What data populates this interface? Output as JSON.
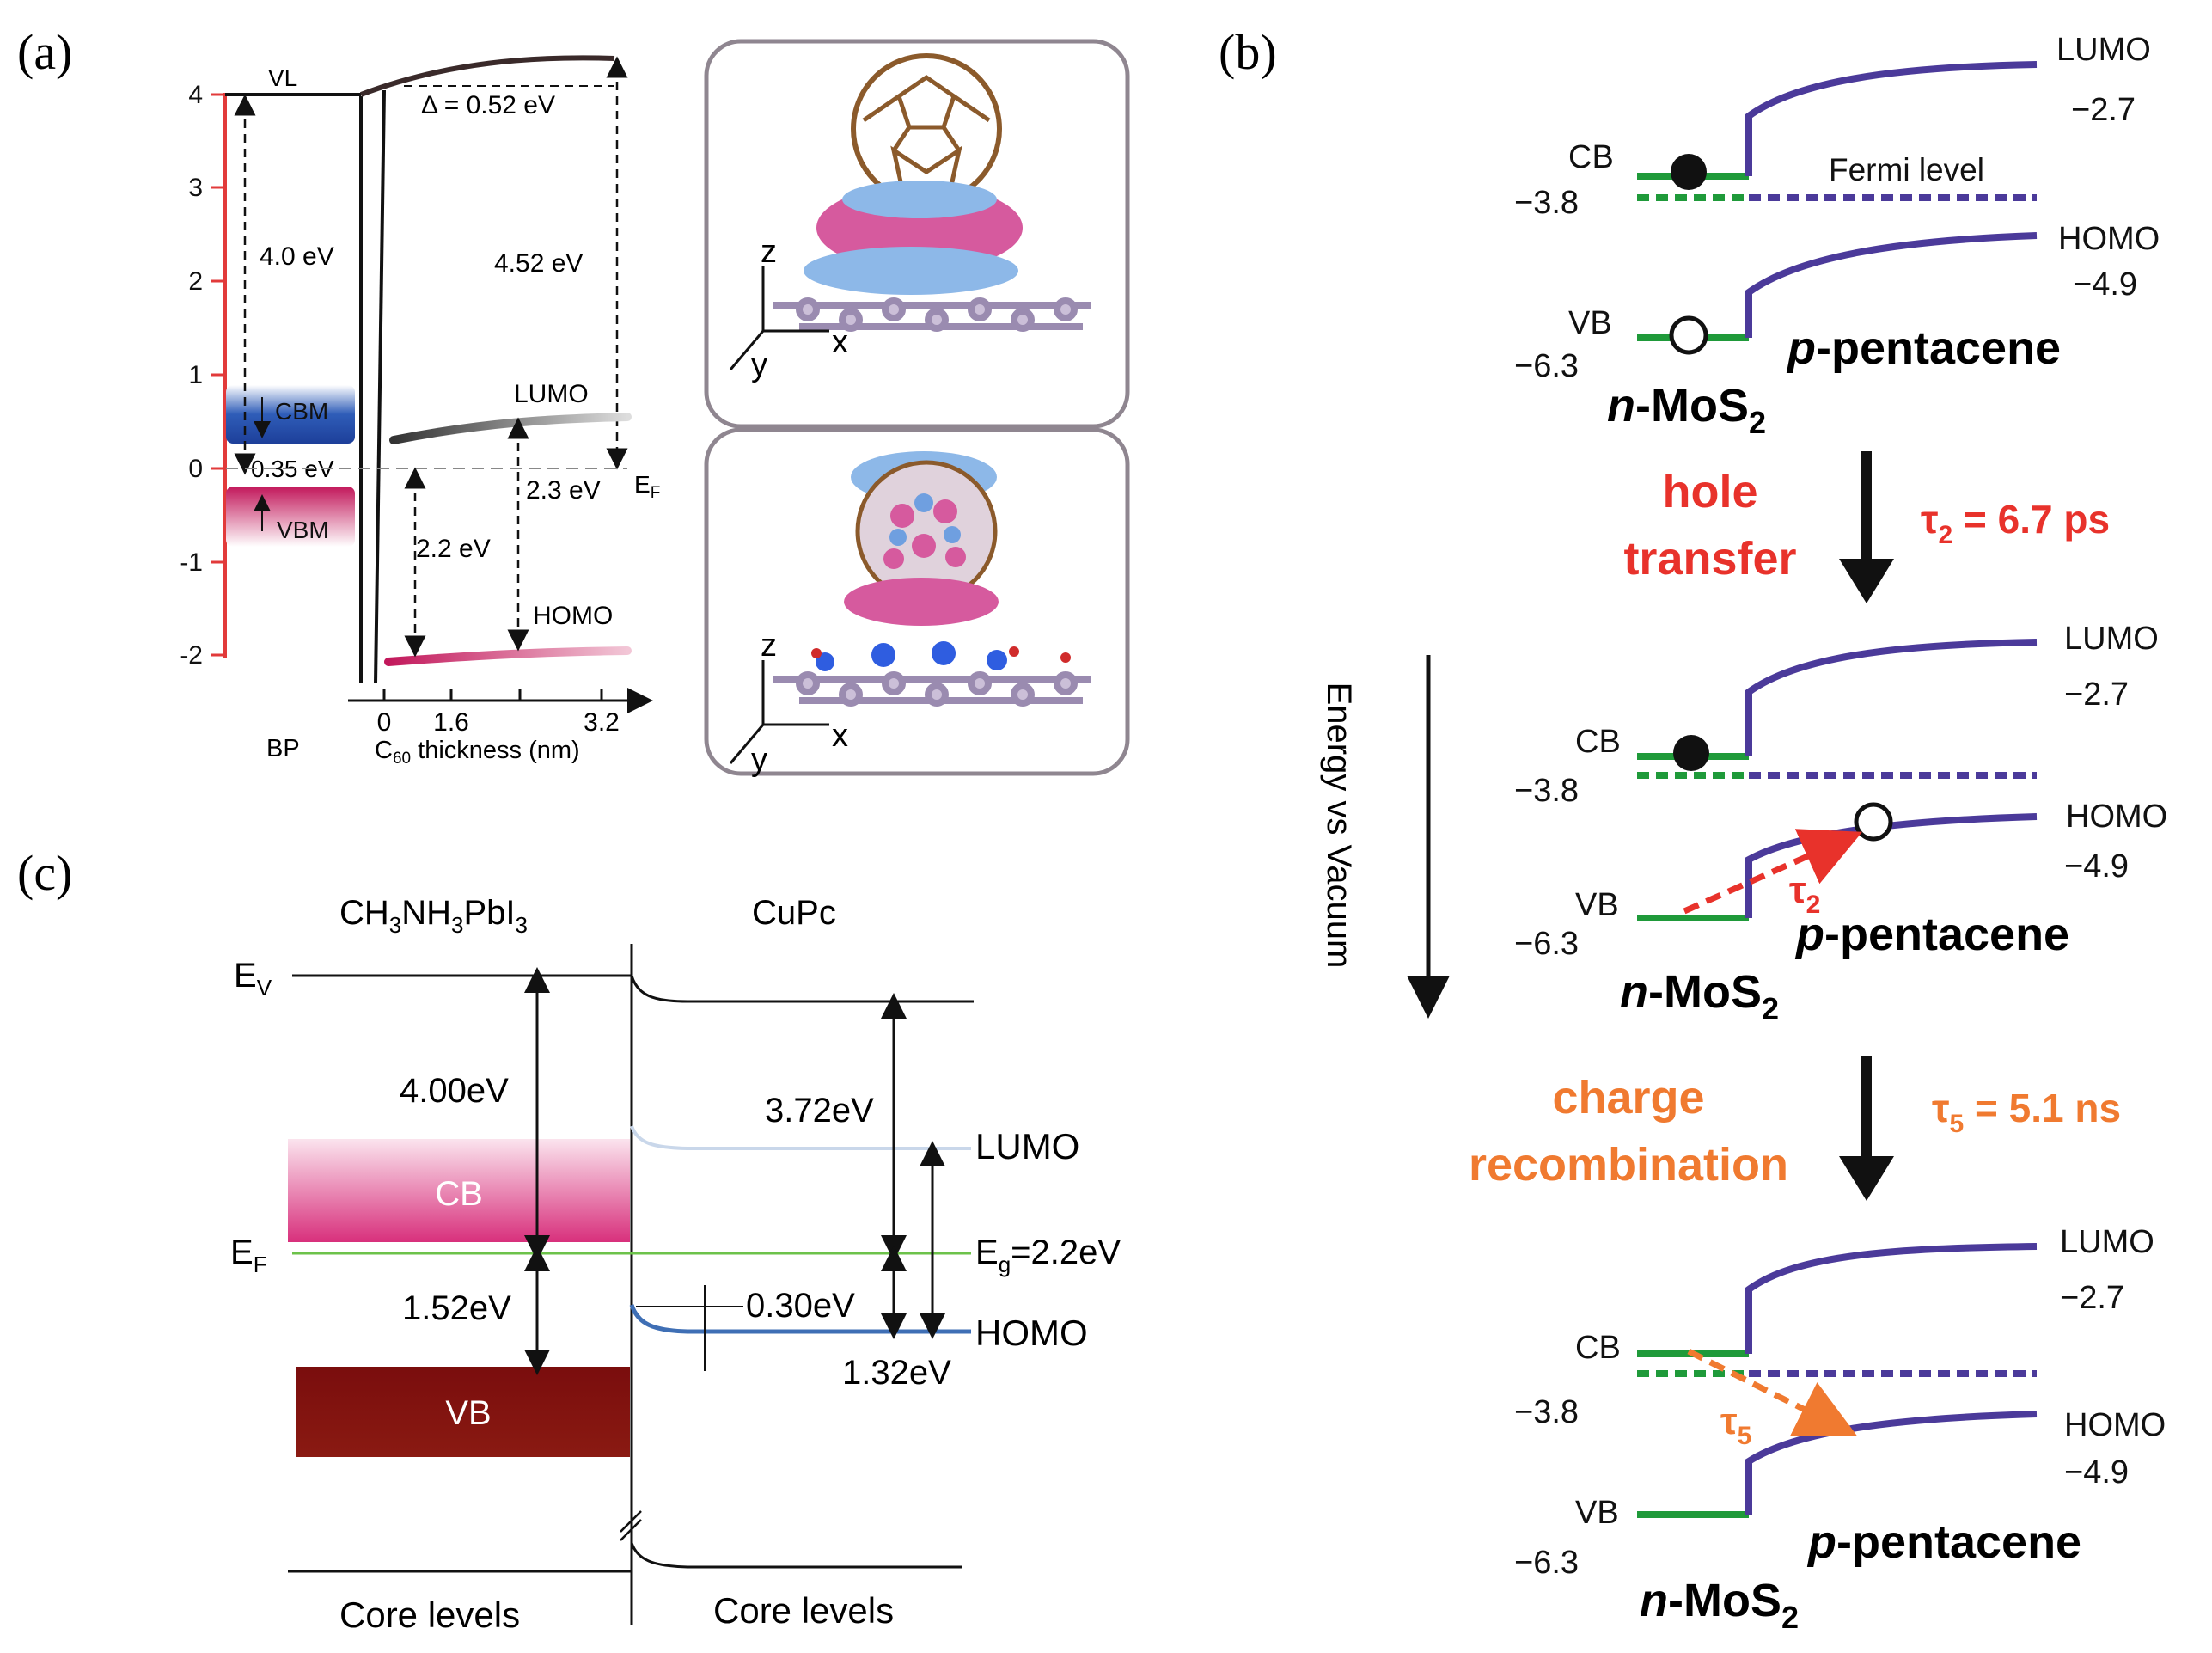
{
  "panel_a": {
    "label": "(a)",
    "yticks": [
      "4",
      "3",
      "2",
      "1",
      "0",
      "-1",
      "-2"
    ],
    "xticks": [
      "0",
      "1.6",
      "3.2"
    ],
    "bp_label": "BP",
    "xlabel_prefix": "C",
    "xlabel_sub": "60",
    "xlabel_suffix": " thickness  (nm)",
    "vl": "VL",
    "delta": "Δ = 0.52 eV",
    "gap_40": "4.0 eV",
    "gap_452": "4.52 eV",
    "cbm": "CBM",
    "vbm": "VBM",
    "offset_035": "0.35 eV",
    "lumo": "LUMO",
    "homo": "HOMO",
    "gap_23": "2.3 eV",
    "gap_22": "2.2 eV",
    "ef_main": "E",
    "ef_sub": "F",
    "axis_z": "z",
    "axis_x": "x",
    "axis_y": "y"
  },
  "panel_b": {
    "label": "(b)",
    "energy_axis": "Energy vs Vacuum",
    "lumo": "LUMO",
    "homo": "HOMO",
    "lumo_val": "−2.7",
    "homo_val": "−4.9",
    "cb": "CB",
    "vb": "VB",
    "cb_val": "−3.8",
    "vb_val": "−6.3",
    "fermi": "Fermi level",
    "p_prefix": "p",
    "p_suffix": "-pentacene",
    "n_prefix": "n",
    "n_mid": "-MoS",
    "n_sub": "2",
    "hole_1": "hole",
    "hole_2": "transfer",
    "tau2_main": "τ",
    "tau2_sub": "2",
    "tau2_eq": " = 6.7 ps",
    "charge_1": "charge",
    "charge_2": "recombination",
    "tau5_main": "τ",
    "tau5_sub": "5",
    "tau5_eq": " = 5.1 ns",
    "colors": {
      "green": "#1f9a3a",
      "purple": "#4b3a9a",
      "red": "#e8322b",
      "orange": "#f07a30"
    }
  },
  "panel_c": {
    "label": "(c)",
    "left_title": "CH3NH3PbI3",
    "t1": "CH",
    "t1s": "3",
    "t2": "NH",
    "t2s": "3",
    "t3": "PbI",
    "t3s": "3",
    "right_title": "CuPc",
    "ev_main": "E",
    "ev_sub": "V",
    "ef_main": "E",
    "ef_sub": "F",
    "gap_400": "4.00eV",
    "gap_152": "1.52eV",
    "gap_372": "3.72eV",
    "gap_030": "0.30eV",
    "gap_132": "1.32eV",
    "lumo": "LUMO",
    "homo": "HOMO",
    "eg_main": "E",
    "eg_sub": "g",
    "eg_val": "=2.2eV",
    "cb": "CB",
    "vb": "VB",
    "core_left": "Core levels",
    "core_right": "Core levels"
  }
}
